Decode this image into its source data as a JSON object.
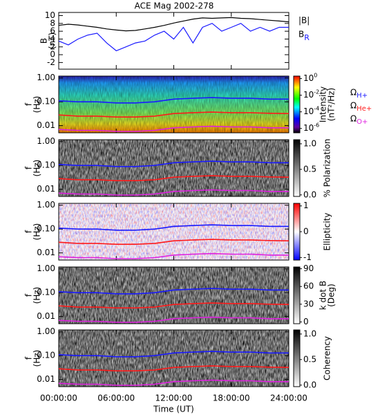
{
  "chart_data": [
    {
      "type": "line",
      "title": "ACE Mag 2002-278",
      "ylabel": [
        "B",
        "(nT)"
      ],
      "ylim": [
        -3.7,
        10.8
      ],
      "yticks": [
        -2,
        0,
        2,
        4,
        6,
        8,
        10
      ],
      "x": [
        0,
        1,
        2,
        3,
        4,
        5,
        6,
        7,
        8,
        9,
        10,
        11,
        12,
        13,
        14,
        15,
        16,
        17,
        18,
        19,
        20,
        21,
        22,
        23,
        24
      ],
      "series": [
        {
          "name": "|B|",
          "color": "#000000",
          "values": [
            7.5,
            7.8,
            7.6,
            7.3,
            7,
            6.6,
            6.3,
            6.1,
            6.2,
            6.6,
            7,
            7.5,
            8.1,
            8.6,
            9.1,
            9.4,
            9.3,
            9.4,
            9.5,
            9.3,
            9.2,
            9,
            8.8,
            8.6,
            8.4
          ]
        },
        {
          "name": "B",
          "subscript": "R",
          "color": "#1a1aff",
          "values": [
            3.5,
            2.5,
            4,
            5,
            5.5,
            3,
            1,
            2,
            3,
            3.5,
            5,
            6,
            4,
            7,
            3,
            7,
            8,
            6,
            7,
            8,
            6,
            7,
            6,
            7,
            7
          ]
        }
      ]
    },
    {
      "type": "spectrogram",
      "ylabel": [
        "f",
        "(Hz)"
      ],
      "ylim": [
        0.005,
        1.2
      ],
      "yticks": [
        {
          "value": 0.01,
          "label": "0.01"
        },
        {
          "value": 0.1,
          "label": "0.10"
        },
        {
          "value": 1,
          "label": "1.00"
        }
      ],
      "colorbar_label": [
        "Intensity",
        "(nT²/Hz)"
      ],
      "color_log": true,
      "clim": [
        3e-07,
        2
      ],
      "colorbar_ticks": [
        {
          "value": 1,
          "label": "10",
          "exponent": "0"
        },
        {
          "value": 0.01,
          "label": "10",
          "exponent": "-2"
        },
        {
          "value": 0.0001,
          "label": "10",
          "exponent": "-4"
        },
        {
          "value": 1e-06,
          "label": "10",
          "exponent": "-6"
        }
      ],
      "x": [
        0,
        2,
        4,
        6,
        8,
        10,
        12,
        14,
        16,
        18,
        20,
        22,
        24
      ],
      "series": [
        {
          "name": "Ω",
          "subscript": "H+",
          "color": "#1a1aff",
          "values": [
            0.11,
            0.1,
            0.1,
            0.09,
            0.09,
            0.1,
            0.13,
            0.14,
            0.15,
            0.14,
            0.14,
            0.13,
            0.13
          ]
        },
        {
          "name": "Ω",
          "subscript": "He+",
          "color": "#ff1a1a",
          "values": [
            0.028,
            0.025,
            0.025,
            0.023,
            0.023,
            0.025,
            0.032,
            0.035,
            0.037,
            0.035,
            0.035,
            0.033,
            0.032
          ]
        },
        {
          "name": "Ω",
          "subscript": "O+",
          "color": "#e020e0",
          "values": [
            0.0069,
            0.0063,
            0.0063,
            0.0057,
            0.0057,
            0.0063,
            0.0081,
            0.0088,
            0.0094,
            0.0088,
            0.0088,
            0.0081,
            0.0081
          ]
        }
      ]
    },
    {
      "type": "spectrogram",
      "ylabel": [
        "f",
        "(Hz)"
      ],
      "ylim": [
        0.005,
        1.2
      ],
      "yticks": [
        {
          "value": 0.01,
          "label": "0.01"
        },
        {
          "value": 0.1,
          "label": "0.10"
        },
        {
          "value": 1,
          "label": "1.00"
        }
      ],
      "colorbar_label": [
        "% Polarization"
      ],
      "clim": [
        -0.03,
        1.08
      ],
      "colorbar_ticks": [
        {
          "value": 0,
          "label": "0.0"
        },
        {
          "value": 0.5,
          "label": "0.5"
        },
        {
          "value": 1,
          "label": "1.0"
        }
      ]
    },
    {
      "type": "spectrogram",
      "ylabel": [
        "f",
        "(Hz)"
      ],
      "ylim": [
        0.005,
        1.2
      ],
      "yticks": [
        {
          "value": 0.01,
          "label": "0.01"
        },
        {
          "value": 0.1,
          "label": "0.10"
        },
        {
          "value": 1,
          "label": "1.00"
        }
      ],
      "colorbar_label": [
        "Ellipticity"
      ],
      "clim": [
        -1.1,
        1.1
      ],
      "colorbar_ticks": [
        -1,
        0,
        1
      ]
    },
    {
      "type": "spectrogram",
      "ylabel": [
        "f",
        "(Hz)"
      ],
      "ylim": [
        0.005,
        1.2
      ],
      "yticks": [
        {
          "value": 0.01,
          "label": "0.01"
        },
        {
          "value": 0.1,
          "label": "0.10"
        },
        {
          "value": 1,
          "label": "1.00"
        }
      ],
      "colorbar_label": [
        "k dot B",
        "(Deg)"
      ],
      "clim": [
        -3,
        93
      ],
      "colorbar_ticks": [
        0,
        30,
        60,
        90
      ]
    },
    {
      "type": "spectrogram",
      "ylabel": [
        "f",
        "(Hz)"
      ],
      "ylim": [
        0.005,
        1.2
      ],
      "yticks": [
        {
          "value": 0.01,
          "label": "0.01"
        },
        {
          "value": 0.1,
          "label": "0.10"
        },
        {
          "value": 1,
          "label": "1.00"
        }
      ],
      "colorbar_label": [
        "Coherency"
      ],
      "clim": [
        -0.03,
        1.08
      ],
      "colorbar_ticks": [
        {
          "value": 0,
          "label": "0.0"
        },
        {
          "value": 0.5,
          "label": "0.5"
        },
        {
          "value": 1,
          "label": "1.0"
        }
      ],
      "xlabel": "Time (UT)",
      "xlim": [
        0,
        24
      ],
      "xticks": [
        {
          "value": 0,
          "label": "00:00:00"
        },
        {
          "value": 6,
          "label": "06:00:00"
        },
        {
          "value": 12,
          "label": "12:00:00"
        },
        {
          "value": 18,
          "label": "18:00:00"
        },
        {
          "value": 24,
          "label": "24:00:00"
        }
      ]
    }
  ]
}
